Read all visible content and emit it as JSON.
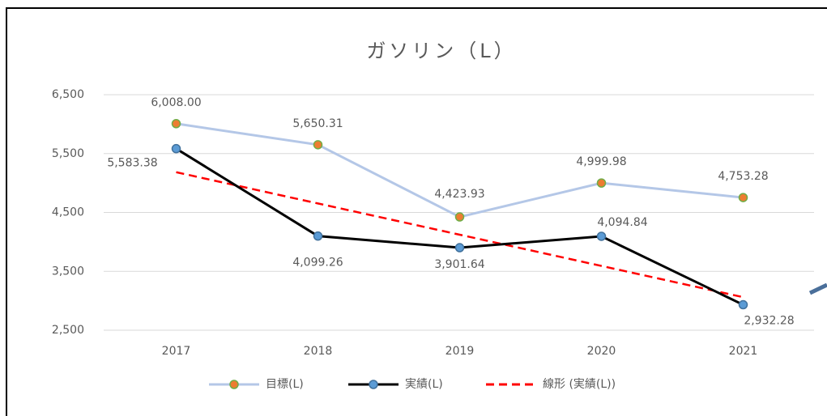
{
  "chart_data": {
    "type": "line",
    "title": "ガソリン（L）",
    "categories": [
      "2017",
      "2018",
      "2019",
      "2020",
      "2021"
    ],
    "series": [
      {
        "name": "目標(L)",
        "color": "#b4c7e7",
        "marker_color": "#ed7d31",
        "marker_edge": "#70ad47",
        "values": [
          6008.0,
          5650.31,
          4423.93,
          4999.98,
          4753.28
        ],
        "value_labels": [
          "6,008.00",
          "5,650.31",
          "4,423.93",
          "4,999.98",
          "4,753.28"
        ]
      },
      {
        "name": "実績(L)",
        "color": "#000000",
        "marker_color": "#5b9bd5",
        "marker_edge": "#41719c",
        "values": [
          5583.38,
          4099.26,
          3901.64,
          4094.84,
          2932.28
        ],
        "value_labels": [
          "5,583.38",
          "4,099.26",
          "3,901.64",
          "4,094.84",
          "2,932.28"
        ]
      },
      {
        "name": "線形 (実績(L))",
        "color": "#ff0000",
        "dashed": true,
        "values": [
          5183.6,
          4652.94,
          4122.28,
          3591.62,
          3060.96
        ]
      }
    ],
    "ylim": [
      2500,
      6500
    ],
    "yticks": [
      {
        "value": 2500,
        "label": "2,500"
      },
      {
        "value": 3500,
        "label": "3,500"
      },
      {
        "value": 4500,
        "label": "4,500"
      },
      {
        "value": 5500,
        "label": "5,500"
      },
      {
        "value": 6500,
        "label": "6,500"
      }
    ],
    "grid": true,
    "legend": "bottom"
  }
}
